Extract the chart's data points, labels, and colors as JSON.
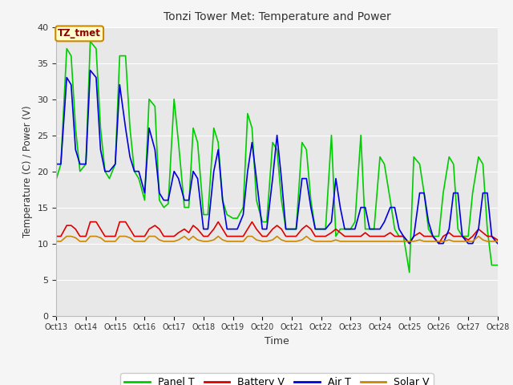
{
  "title": "Tonzi Tower Met: Temperature and Power",
  "xlabel": "Time",
  "ylabel": "Temperature (C) / Power (V)",
  "ylim": [
    0,
    40
  ],
  "yticks": [
    0,
    5,
    10,
    15,
    20,
    25,
    30,
    35,
    40
  ],
  "xtick_labels": [
    "Oct 13",
    "Oct 14",
    "Oct 15",
    "Oct 16",
    "Oct 17",
    "Oct 18",
    "Oct 19",
    "Oct 20",
    "Oct 21",
    "Oct 22",
    "Oct 23",
    "Oct 24",
    "Oct 25",
    "Oct 26",
    "Oct 27",
    "Oct 28"
  ],
  "legend_labels": [
    "Panel T",
    "Battery V",
    "Air T",
    "Solar V"
  ],
  "legend_colors": [
    "#00cc00",
    "#dd0000",
    "#0000dd",
    "#cc8800"
  ],
  "annotation_text": "TZ_tmet",
  "annotation_bg": "#ffffcc",
  "annotation_border": "#cc8800",
  "annotation_text_color": "#8b0000",
  "plot_bg_color": "#e8e8e8",
  "fig_bg_color": "#f5f5f5",
  "grid_color": "#ffffff",
  "panel_t_color": "#00cc00",
  "battery_v_color": "#dd0000",
  "air_t_color": "#0000dd",
  "solar_v_color": "#cc8800",
  "xlim": [
    13,
    28
  ],
  "panel_t_x": [
    13.0,
    13.15,
    13.35,
    13.5,
    13.65,
    13.8,
    14.0,
    14.15,
    14.35,
    14.5,
    14.65,
    14.8,
    15.0,
    15.15,
    15.35,
    15.5,
    15.65,
    15.8,
    16.0,
    16.15,
    16.35,
    16.5,
    16.65,
    16.8,
    17.0,
    17.15,
    17.35,
    17.5,
    17.65,
    17.8,
    18.0,
    18.15,
    18.35,
    18.5,
    18.65,
    18.8,
    19.0,
    19.15,
    19.35,
    19.5,
    19.65,
    19.8,
    20.0,
    20.15,
    20.35,
    20.5,
    20.65,
    20.8,
    21.0,
    21.15,
    21.35,
    21.5,
    21.65,
    21.8,
    22.0,
    22.15,
    22.35,
    22.5,
    22.65,
    22.8,
    23.0,
    23.15,
    23.35,
    23.5,
    23.65,
    23.8,
    24.0,
    24.15,
    24.35,
    24.5,
    24.65,
    24.8,
    25.0,
    25.15,
    25.35,
    25.5,
    25.65,
    25.8,
    26.0,
    26.15,
    26.35,
    26.5,
    26.65,
    26.8,
    27.0,
    27.15,
    27.35,
    27.5,
    27.65,
    27.8,
    28.0
  ],
  "panel_t_y": [
    19.0,
    21.0,
    37.0,
    36.0,
    26.0,
    20.0,
    21.0,
    38.0,
    37.0,
    26.0,
    20.0,
    19.0,
    21.0,
    36.0,
    36.0,
    26.0,
    20.0,
    19.0,
    16.0,
    30.0,
    29.0,
    16.0,
    15.0,
    15.5,
    30.0,
    24.0,
    15.0,
    15.0,
    26.0,
    24.0,
    14.0,
    14.0,
    26.0,
    24.0,
    16.0,
    14.0,
    13.5,
    13.5,
    15.0,
    28.0,
    26.0,
    16.0,
    13.0,
    13.0,
    24.0,
    23.0,
    16.0,
    12.0,
    12.0,
    12.0,
    24.0,
    23.0,
    16.0,
    12.0,
    12.0,
    12.0,
    25.0,
    11.0,
    12.0,
    12.0,
    12.0,
    13.0,
    25.0,
    12.0,
    12.0,
    12.0,
    22.0,
    21.0,
    16.0,
    12.0,
    11.0,
    11.0,
    6.0,
    22.0,
    21.0,
    17.0,
    12.0,
    11.0,
    11.0,
    17.0,
    22.0,
    21.0,
    12.0,
    11.0,
    11.0,
    17.0,
    22.0,
    21.0,
    12.0,
    7.0,
    7.0
  ],
  "air_t_x": [
    13.0,
    13.15,
    13.35,
    13.5,
    13.65,
    13.8,
    14.0,
    14.15,
    14.35,
    14.5,
    14.65,
    14.8,
    15.0,
    15.15,
    15.35,
    15.5,
    15.65,
    15.8,
    16.0,
    16.15,
    16.35,
    16.5,
    16.65,
    16.8,
    17.0,
    17.15,
    17.35,
    17.5,
    17.65,
    17.8,
    18.0,
    18.15,
    18.35,
    18.5,
    18.65,
    18.8,
    19.0,
    19.15,
    19.35,
    19.5,
    19.65,
    19.8,
    20.0,
    20.15,
    20.35,
    20.5,
    20.65,
    20.8,
    21.0,
    21.15,
    21.35,
    21.5,
    21.65,
    21.8,
    22.0,
    22.15,
    22.35,
    22.5,
    22.65,
    22.8,
    23.0,
    23.15,
    23.35,
    23.5,
    23.65,
    23.8,
    24.0,
    24.15,
    24.35,
    24.5,
    24.65,
    24.8,
    25.0,
    25.15,
    25.35,
    25.5,
    25.65,
    25.8,
    26.0,
    26.15,
    26.35,
    26.5,
    26.65,
    26.8,
    27.0,
    27.15,
    27.35,
    27.5,
    27.65,
    27.8,
    28.0
  ],
  "air_t_y": [
    21.0,
    21.0,
    33.0,
    32.0,
    23.0,
    21.0,
    21.0,
    34.0,
    33.0,
    23.0,
    20.0,
    20.0,
    21.0,
    32.0,
    26.0,
    22.0,
    20.0,
    20.0,
    17.0,
    26.0,
    23.0,
    17.0,
    16.0,
    16.0,
    20.0,
    19.0,
    16.0,
    16.0,
    20.0,
    19.0,
    12.0,
    12.0,
    20.0,
    23.0,
    16.0,
    12.0,
    12.0,
    12.0,
    14.0,
    20.0,
    24.0,
    19.0,
    12.0,
    12.0,
    19.0,
    25.0,
    19.0,
    12.0,
    12.0,
    12.0,
    19.0,
    19.0,
    15.0,
    12.0,
    12.0,
    12.0,
    13.0,
    19.0,
    15.0,
    12.0,
    12.0,
    12.0,
    15.0,
    15.0,
    12.0,
    12.0,
    12.0,
    13.0,
    15.0,
    15.0,
    12.0,
    11.0,
    10.0,
    11.0,
    17.0,
    17.0,
    13.0,
    11.0,
    10.0,
    10.0,
    12.0,
    17.0,
    17.0,
    11.0,
    10.0,
    10.0,
    12.0,
    17.0,
    17.0,
    11.0,
    10.0
  ],
  "battery_v_x": [
    13.0,
    13.15,
    13.35,
    13.5,
    13.65,
    13.8,
    14.0,
    14.15,
    14.35,
    14.5,
    14.65,
    14.8,
    15.0,
    15.15,
    15.35,
    15.5,
    15.65,
    15.8,
    16.0,
    16.15,
    16.35,
    16.5,
    16.65,
    16.8,
    17.0,
    17.15,
    17.35,
    17.5,
    17.65,
    17.8,
    18.0,
    18.15,
    18.35,
    18.5,
    18.65,
    18.8,
    19.0,
    19.15,
    19.35,
    19.5,
    19.65,
    19.8,
    20.0,
    20.15,
    20.35,
    20.5,
    20.65,
    20.8,
    21.0,
    21.15,
    21.35,
    21.5,
    21.65,
    21.8,
    22.0,
    22.15,
    22.35,
    22.5,
    22.65,
    22.8,
    23.0,
    23.15,
    23.35,
    23.5,
    23.65,
    23.8,
    24.0,
    24.15,
    24.35,
    24.5,
    24.65,
    24.8,
    25.0,
    25.15,
    25.35,
    25.5,
    25.65,
    25.8,
    26.0,
    26.15,
    26.35,
    26.5,
    26.65,
    26.8,
    27.0,
    27.15,
    27.35,
    27.5,
    27.65,
    27.8,
    28.0
  ],
  "battery_v_y": [
    11.0,
    11.0,
    12.5,
    12.5,
    12.0,
    11.0,
    11.0,
    13.0,
    13.0,
    12.0,
    11.0,
    11.0,
    11.0,
    13.0,
    13.0,
    12.0,
    11.0,
    11.0,
    11.0,
    12.0,
    12.5,
    12.0,
    11.0,
    11.0,
    11.0,
    11.5,
    12.0,
    11.5,
    12.5,
    12.0,
    11.0,
    11.0,
    12.0,
    13.0,
    12.0,
    11.0,
    11.0,
    11.0,
    11.0,
    12.0,
    13.0,
    12.0,
    11.0,
    11.0,
    12.0,
    12.5,
    12.0,
    11.0,
    11.0,
    11.0,
    12.0,
    12.5,
    12.0,
    11.0,
    11.0,
    11.0,
    11.5,
    12.0,
    11.5,
    11.0,
    11.0,
    11.0,
    11.0,
    11.5,
    11.0,
    11.0,
    11.0,
    11.0,
    11.5,
    11.0,
    11.0,
    11.0,
    10.0,
    11.0,
    11.5,
    11.0,
    11.0,
    11.0,
    10.0,
    11.0,
    11.5,
    11.0,
    11.0,
    11.0,
    10.5,
    11.0,
    12.0,
    11.5,
    11.0,
    11.0,
    10.5
  ],
  "solar_v_x": [
    13.0,
    13.15,
    13.35,
    13.5,
    13.65,
    13.8,
    14.0,
    14.15,
    14.35,
    14.5,
    14.65,
    14.8,
    15.0,
    15.15,
    15.35,
    15.5,
    15.65,
    15.8,
    16.0,
    16.15,
    16.35,
    16.5,
    16.65,
    16.8,
    17.0,
    17.15,
    17.35,
    17.5,
    17.65,
    17.8,
    18.0,
    18.15,
    18.35,
    18.5,
    18.65,
    18.8,
    19.0,
    19.15,
    19.35,
    19.5,
    19.65,
    19.8,
    20.0,
    20.15,
    20.35,
    20.5,
    20.65,
    20.8,
    21.0,
    21.15,
    21.35,
    21.5,
    21.65,
    21.8,
    22.0,
    22.15,
    22.35,
    22.5,
    22.65,
    22.8,
    23.0,
    23.15,
    23.35,
    23.5,
    23.65,
    23.8,
    24.0,
    24.15,
    24.35,
    24.5,
    24.65,
    24.8,
    25.0,
    25.15,
    25.35,
    25.5,
    25.65,
    25.8,
    26.0,
    26.15,
    26.35,
    26.5,
    26.65,
    26.8,
    27.0,
    27.15,
    27.35,
    27.5,
    27.65,
    27.8,
    28.0
  ],
  "solar_v_y": [
    10.3,
    10.3,
    11.0,
    11.0,
    10.8,
    10.3,
    10.3,
    11.0,
    11.0,
    10.8,
    10.3,
    10.3,
    10.3,
    11.0,
    11.0,
    10.8,
    10.3,
    10.3,
    10.3,
    11.0,
    11.0,
    10.5,
    10.3,
    10.3,
    10.3,
    10.5,
    11.0,
    10.5,
    11.0,
    10.5,
    10.3,
    10.3,
    10.5,
    11.0,
    10.5,
    10.3,
    10.3,
    10.3,
    10.3,
    11.0,
    11.0,
    10.5,
    10.3,
    10.3,
    10.5,
    11.0,
    10.5,
    10.3,
    10.3,
    10.3,
    10.5,
    11.0,
    10.5,
    10.3,
    10.3,
    10.3,
    10.3,
    10.5,
    10.3,
    10.3,
    10.3,
    10.3,
    10.3,
    10.3,
    10.3,
    10.3,
    10.3,
    10.3,
    10.3,
    10.3,
    10.3,
    10.3,
    10.3,
    10.3,
    10.5,
    10.3,
    10.3,
    10.3,
    10.3,
    10.3,
    10.5,
    10.3,
    10.3,
    10.3,
    10.3,
    10.3,
    11.0,
    10.5,
    10.3,
    10.3,
    10.3
  ]
}
